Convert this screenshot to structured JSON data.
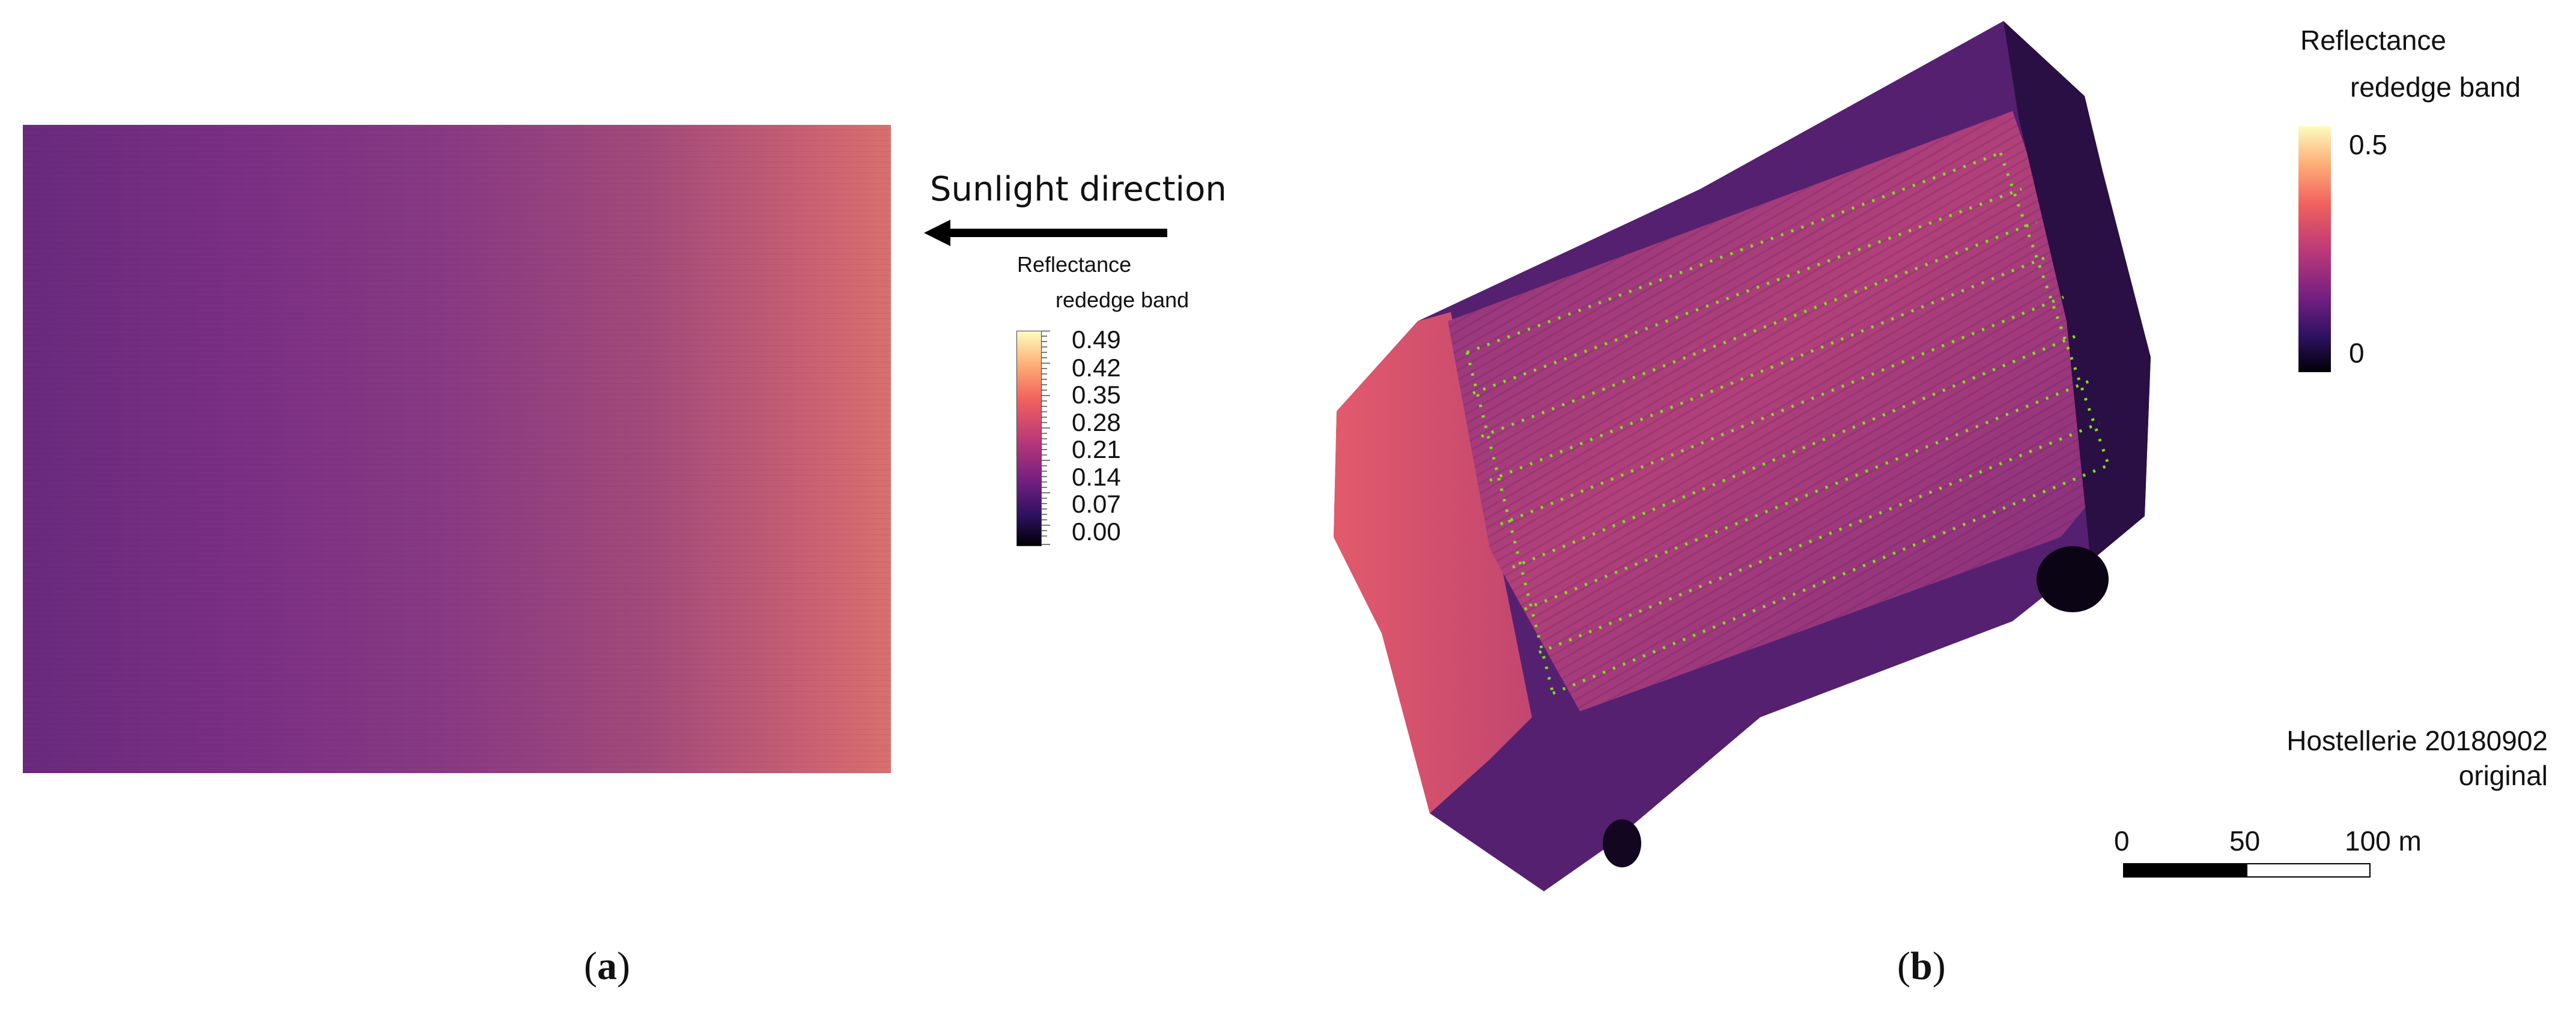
{
  "panel_a": {
    "caption_open": "(",
    "caption_letter": "a",
    "caption_close": ")",
    "sunlight_label": "Sunlight direction",
    "legend_title_line1": "Reflectance",
    "legend_title_line2": "rededge band",
    "legend_ticks": [
      "0.49",
      "0.42",
      "0.35",
      "0.28",
      "0.21",
      "0.14",
      "0.07",
      "0.00"
    ]
  },
  "panel_b": {
    "caption_open": "(",
    "caption_letter": "b",
    "caption_close": ")",
    "legend_title_line1": "Reflectance",
    "legend_title_line2": "rededge band",
    "legend_ticks": [
      "0.5",
      "0"
    ],
    "site_line1": "Hostellerie 20180902",
    "site_line2": "original",
    "scale_labels": [
      "0",
      "50",
      "100 m"
    ]
  },
  "colors": {
    "colormap": "magma",
    "plot_markers": "#7fe01a"
  }
}
